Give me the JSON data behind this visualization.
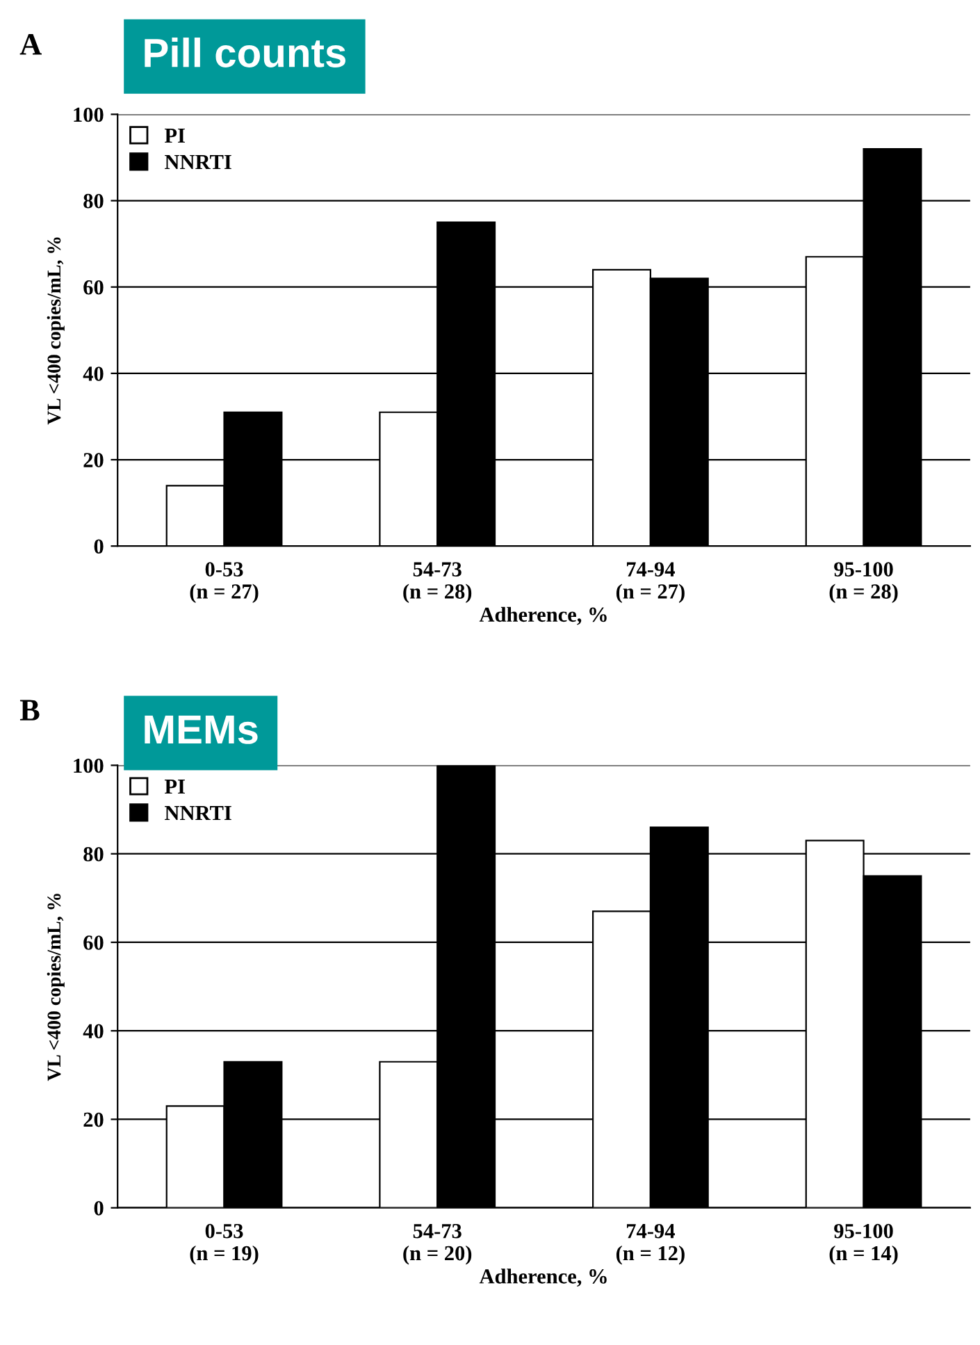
{
  "chart_data": [
    {
      "type": "bar",
      "title": "Pill counts",
      "annotations": [
        "A"
      ],
      "xlabel": "Adherence, %",
      "ylabel": "VL <400 copies/mL, %",
      "categories": [
        "0-53\n(n = 27)",
        "54-73\n(n = 28)",
        "74-94\n(n = 27)",
        "95-100\n(n = 28)"
      ],
      "series": [
        {
          "name": "PI",
          "color": "#ffffff",
          "values": [
            14,
            31,
            64,
            67
          ]
        },
        {
          "name": "NNRTI",
          "color": "#000000",
          "values": [
            31,
            75,
            62,
            92
          ]
        }
      ],
      "ylim": [
        0,
        100
      ],
      "yticks": [
        0,
        20,
        40,
        60,
        80,
        100
      ],
      "grid": "y",
      "legend": "top left"
    },
    {
      "type": "bar",
      "title": "MEMs",
      "annotations": [
        "B"
      ],
      "xlabel": "Adherence, %",
      "ylabel": "VL <400 copies/mL, %",
      "categories": [
        "0-53\n(n = 19)",
        "54-73\n(n = 20)",
        "74-94\n(n = 12)",
        "95-100\n(n = 14)"
      ],
      "series": [
        {
          "name": "PI",
          "color": "#ffffff",
          "values": [
            23,
            33,
            67,
            83
          ]
        },
        {
          "name": "NNRTI",
          "color": "#000000",
          "values": [
            33,
            100,
            86,
            75
          ]
        }
      ],
      "ylim": [
        0,
        100
      ],
      "yticks": [
        0,
        20,
        40,
        60,
        80,
        100
      ],
      "grid": "y",
      "legend": "top left"
    }
  ]
}
